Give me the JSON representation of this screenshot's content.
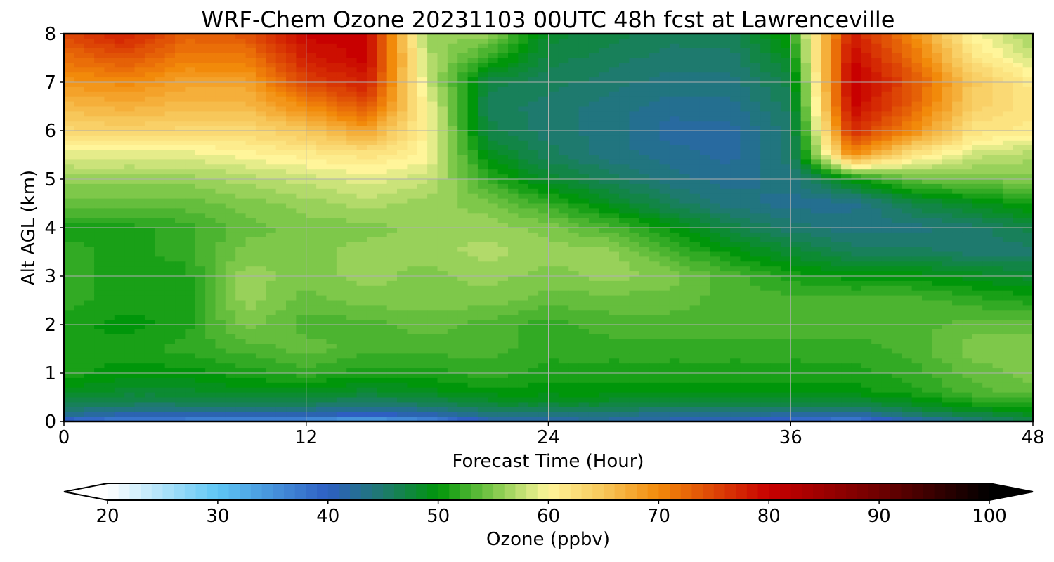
{
  "chart_data": {
    "type": "heatmap",
    "title": "WRF-Chem Ozone  20231103 00UTC 48h fcst at Lawrenceville",
    "xlabel": "Forecast Time (Hour)",
    "ylabel": "Alt AGL (km)",
    "xlim": [
      0,
      48
    ],
    "ylim": [
      0,
      8
    ],
    "x_ticks": [
      "0",
      "12",
      "24",
      "36",
      "48"
    ],
    "y_ticks": [
      "0",
      "1",
      "2",
      "3",
      "4",
      "5",
      "6",
      "7",
      "8"
    ],
    "grid": true,
    "x_hours": [
      0,
      3,
      6,
      9,
      12,
      15,
      18,
      21,
      24,
      27,
      30,
      33,
      36,
      39,
      42,
      45,
      48
    ],
    "alt_km": [
      0,
      0.1,
      0.3,
      0.6,
      1,
      1.5,
      2,
      2.5,
      3,
      3.5,
      4,
      4.5,
      5,
      5.5,
      6,
      6.5,
      7,
      7.5,
      8
    ],
    "ozone_ppbv": [
      [
        38,
        36,
        35,
        34,
        33,
        31,
        34,
        40,
        42,
        42,
        41,
        40,
        38,
        36,
        40,
        44,
        47
      ],
      [
        42,
        40,
        40,
        40,
        40,
        38,
        40,
        43,
        43,
        43,
        42,
        42,
        41,
        40,
        44,
        46,
        48
      ],
      [
        46,
        45,
        45,
        45,
        45,
        44,
        45,
        47,
        47,
        47,
        46,
        46,
        46,
        46,
        48,
        50,
        51
      ],
      [
        49,
        48,
        48,
        49,
        49,
        48,
        49,
        50,
        50,
        50,
        50,
        50,
        50,
        50,
        51,
        53,
        54
      ],
      [
        51,
        50,
        50,
        51,
        52,
        51,
        51,
        52,
        51,
        51,
        51,
        51,
        51,
        51,
        52,
        54,
        55
      ],
      [
        51,
        51,
        52,
        53,
        54,
        53,
        53,
        53,
        52,
        52,
        52,
        52,
        52,
        52,
        53,
        55,
        55
      ],
      [
        51,
        50,
        51,
        55,
        53,
        53,
        54,
        53,
        52,
        53,
        53,
        53,
        53,
        53,
        53,
        54,
        54
      ],
      [
        52,
        51,
        51,
        56,
        54,
        55,
        55,
        55,
        54,
        54,
        54,
        53,
        53,
        53,
        53,
        52,
        51
      ],
      [
        52,
        51,
        51,
        56,
        55,
        56,
        55,
        56,
        55,
        56,
        55,
        53,
        51,
        50,
        50,
        49,
        48
      ],
      [
        52,
        51,
        52,
        55,
        55,
        56,
        56,
        57,
        56,
        56,
        53,
        50,
        48,
        46,
        46,
        45,
        45
      ],
      [
        51,
        51,
        52,
        54,
        55,
        55,
        56,
        56,
        55,
        53,
        50,
        47,
        45,
        44,
        44,
        45,
        47
      ],
      [
        54,
        54,
        54,
        55,
        56,
        57,
        56,
        55,
        52,
        49,
        46,
        44,
        43,
        43,
        47,
        49,
        51
      ],
      [
        56,
        56,
        56,
        57,
        58,
        59,
        58,
        52,
        48,
        46,
        44,
        43,
        44,
        50,
        54,
        55,
        55
      ],
      [
        59,
        59,
        59,
        60,
        61,
        62,
        60,
        49,
        46,
        44,
        43,
        42,
        45,
        70,
        62,
        58,
        57
      ],
      [
        63,
        64,
        63,
        63,
        65,
        68,
        60,
        47,
        45,
        44,
        42,
        42,
        45,
        77,
        70,
        62,
        61
      ],
      [
        66,
        67,
        66,
        66,
        70,
        74,
        60,
        46,
        45,
        44,
        43,
        43,
        46,
        80,
        73,
        64,
        62
      ],
      [
        69,
        70,
        68,
        68,
        75,
        78,
        58,
        47,
        46,
        45,
        44,
        44,
        47,
        81,
        74,
        65,
        61
      ],
      [
        72,
        74,
        71,
        71,
        78,
        80,
        57,
        52,
        47,
        46,
        45,
        45,
        49,
        80,
        72,
        62,
        58
      ],
      [
        75,
        78,
        73,
        74,
        80,
        80,
        56,
        56,
        48,
        47,
        46,
        46,
        51,
        78,
        70,
        60,
        56
      ]
    ],
    "colorbar": {
      "label": "Ozone  (ppbv)",
      "min": 20,
      "max": 100,
      "ticks": [
        "20",
        "30",
        "40",
        "50",
        "60",
        "70",
        "80",
        "90",
        "100"
      ],
      "extend": "both"
    },
    "colormap_stops": [
      [
        20,
        "#ffffff"
      ],
      [
        30,
        "#5ec6f4"
      ],
      [
        40,
        "#2e5fc2"
      ],
      [
        45,
        "#1e7a6e"
      ],
      [
        50,
        "#00960a"
      ],
      [
        55,
        "#7ec84a"
      ],
      [
        60,
        "#fff59a"
      ],
      [
        65,
        "#f7c75a"
      ],
      [
        70,
        "#f28a0a"
      ],
      [
        80,
        "#c80000"
      ],
      [
        90,
        "#6e0000"
      ],
      [
        100,
        "#000000"
      ]
    ]
  }
}
